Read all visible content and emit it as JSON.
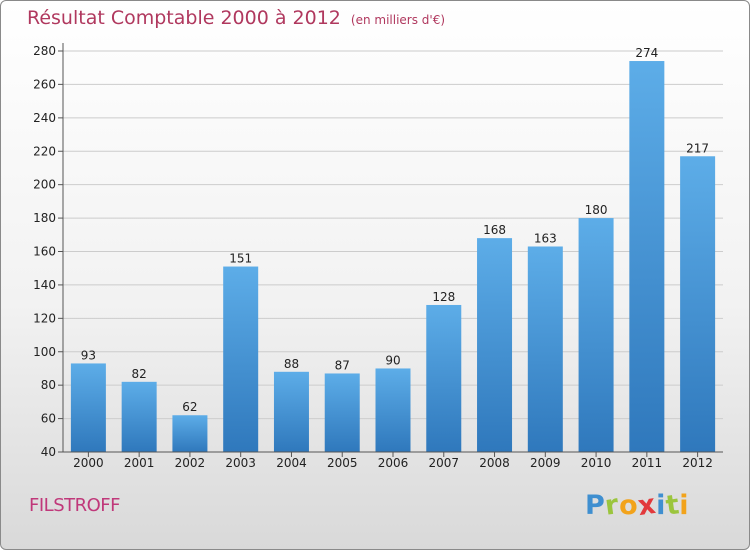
{
  "header": {
    "title": "Résultat Comptable 2000 à 2012",
    "unit": "(en milliers d'€)"
  },
  "footer": {
    "city": "FILSTROFF"
  },
  "logo": {
    "letters": [
      "P",
      "r",
      "o",
      "x",
      "i",
      "t",
      "i"
    ],
    "colors": [
      "#3f8fd0",
      "#9bc53d",
      "#f2a31b",
      "#e2393c",
      "#3f8fd0",
      "#9bc53d",
      "#f2a31b"
    ]
  },
  "colors": {
    "bar_light": "#5dade8",
    "bar_dark": "#2f78bc",
    "grid": "#cccccc",
    "axis": "#555555"
  },
  "chart_data": {
    "type": "bar",
    "categories": [
      "2000",
      "2001",
      "2002",
      "2003",
      "2004",
      "2005",
      "2006",
      "2007",
      "2008",
      "2009",
      "2010",
      "2011",
      "2012"
    ],
    "values": [
      93,
      82,
      62,
      151,
      88,
      87,
      90,
      128,
      168,
      163,
      180,
      274,
      217
    ],
    "value_labels": [
      "93",
      "82",
      "62",
      "151",
      "88",
      "87",
      "90",
      "128",
      "168",
      "163",
      "180",
      "274",
      "217"
    ],
    "yticks": [
      "40",
      "60",
      "80",
      "100",
      "120",
      "140",
      "160",
      "180",
      "200",
      "220",
      "240",
      "260",
      "280"
    ],
    "ylim": [
      40,
      280
    ],
    "grid": true
  }
}
